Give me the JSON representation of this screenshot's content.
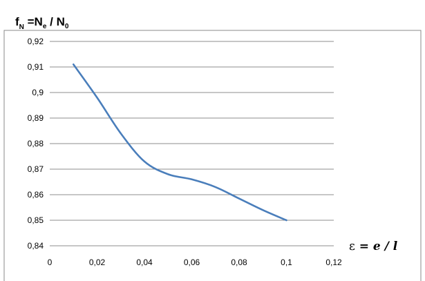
{
  "chart_data": {
    "type": "line",
    "ylabel": {
      "f": "f",
      "f_sub": "N",
      "eq": " =N",
      "num_sub": "e",
      "slash": " / N",
      "den_sub": "0"
    },
    "xlabel": {
      "symbol": "ε",
      "eq": " = ",
      "e": "e",
      "slash": " / ",
      "l": "l"
    },
    "xlim": [
      0,
      0.12
    ],
    "ylim": [
      0.84,
      0.92
    ],
    "x_ticks": [
      0,
      0.02,
      0.04,
      0.06,
      0.08,
      0.1,
      0.12
    ],
    "x_tick_labels": [
      "0",
      "0,02",
      "0,04",
      "0,06",
      "0,08",
      "0,1",
      "0,12"
    ],
    "y_ticks": [
      0.84,
      0.85,
      0.86,
      0.87,
      0.88,
      0.89,
      0.9,
      0.91,
      0.92
    ],
    "y_tick_labels": [
      "0,84",
      "0,85",
      "0,86",
      "0,87",
      "0,88",
      "0,89",
      "0,9",
      "0,91",
      "0,92"
    ],
    "grid": "horizontal",
    "series": [
      {
        "color": "#4a7ebb",
        "x": [
          0.01,
          0.02,
          0.03,
          0.04,
          0.05,
          0.06,
          0.07,
          0.08,
          0.09,
          0.1
        ],
        "y": [
          0.911,
          0.898,
          0.884,
          0.873,
          0.868,
          0.866,
          0.863,
          0.8585,
          0.854,
          0.85
        ]
      }
    ]
  }
}
